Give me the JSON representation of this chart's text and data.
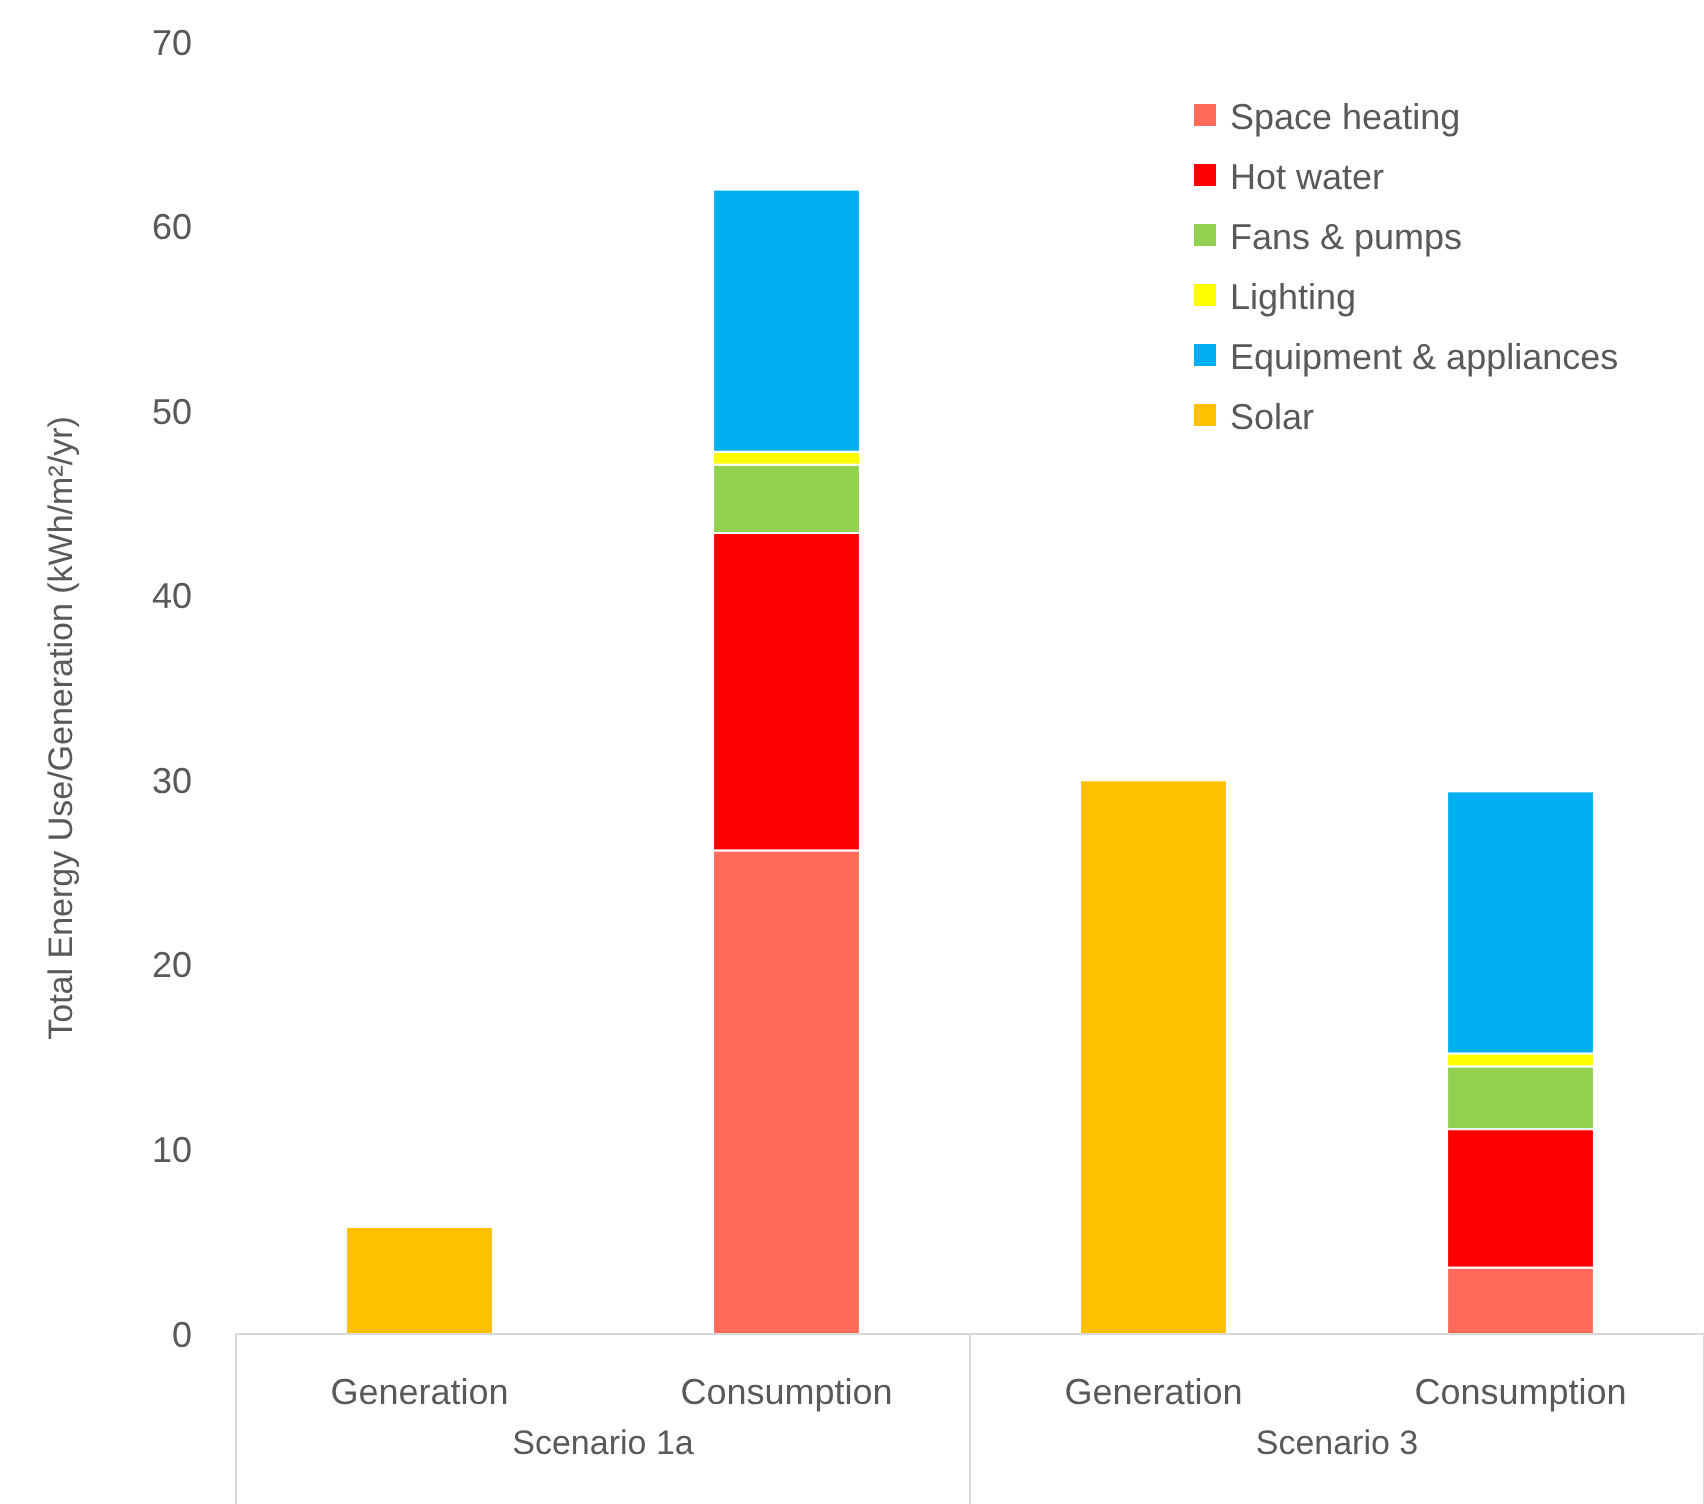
{
  "chart_data": {
    "type": "bar",
    "stacked": true,
    "ylabel": "Total Energy Use/Generation (kWh/m²/yr)",
    "categories": [
      "Generation",
      "Consumption",
      "Generation",
      "Consumption"
    ],
    "annotations": [
      "Scenario 1a",
      "Scenario 3"
    ],
    "ylim": [
      0,
      70
    ],
    "yticks": [
      0,
      10,
      20,
      30,
      40,
      50,
      60,
      70
    ],
    "grid": false,
    "legend": "top right",
    "series": [
      {
        "name": "Space heating",
        "color": "#ff6a5a",
        "values": [
          null,
          26.2,
          null,
          3.6
        ]
      },
      {
        "name": "Hot water",
        "color": "#ff0000",
        "values": [
          null,
          17.2,
          null,
          7.5
        ]
      },
      {
        "name": "Fans & pumps",
        "color": "#92d050",
        "values": [
          null,
          3.7,
          null,
          3.4
        ]
      },
      {
        "name": "Lighting",
        "color": "#ffff00",
        "values": [
          null,
          0.7,
          null,
          0.7
        ]
      },
      {
        "name": "Equipment & appliances",
        "color": "#00b0f0",
        "values": [
          null,
          14.2,
          null,
          14.2
        ]
      },
      {
        "name": "Solar",
        "color": "#ffc000",
        "values": [
          5.8,
          null,
          30.0,
          null
        ]
      }
    ]
  }
}
